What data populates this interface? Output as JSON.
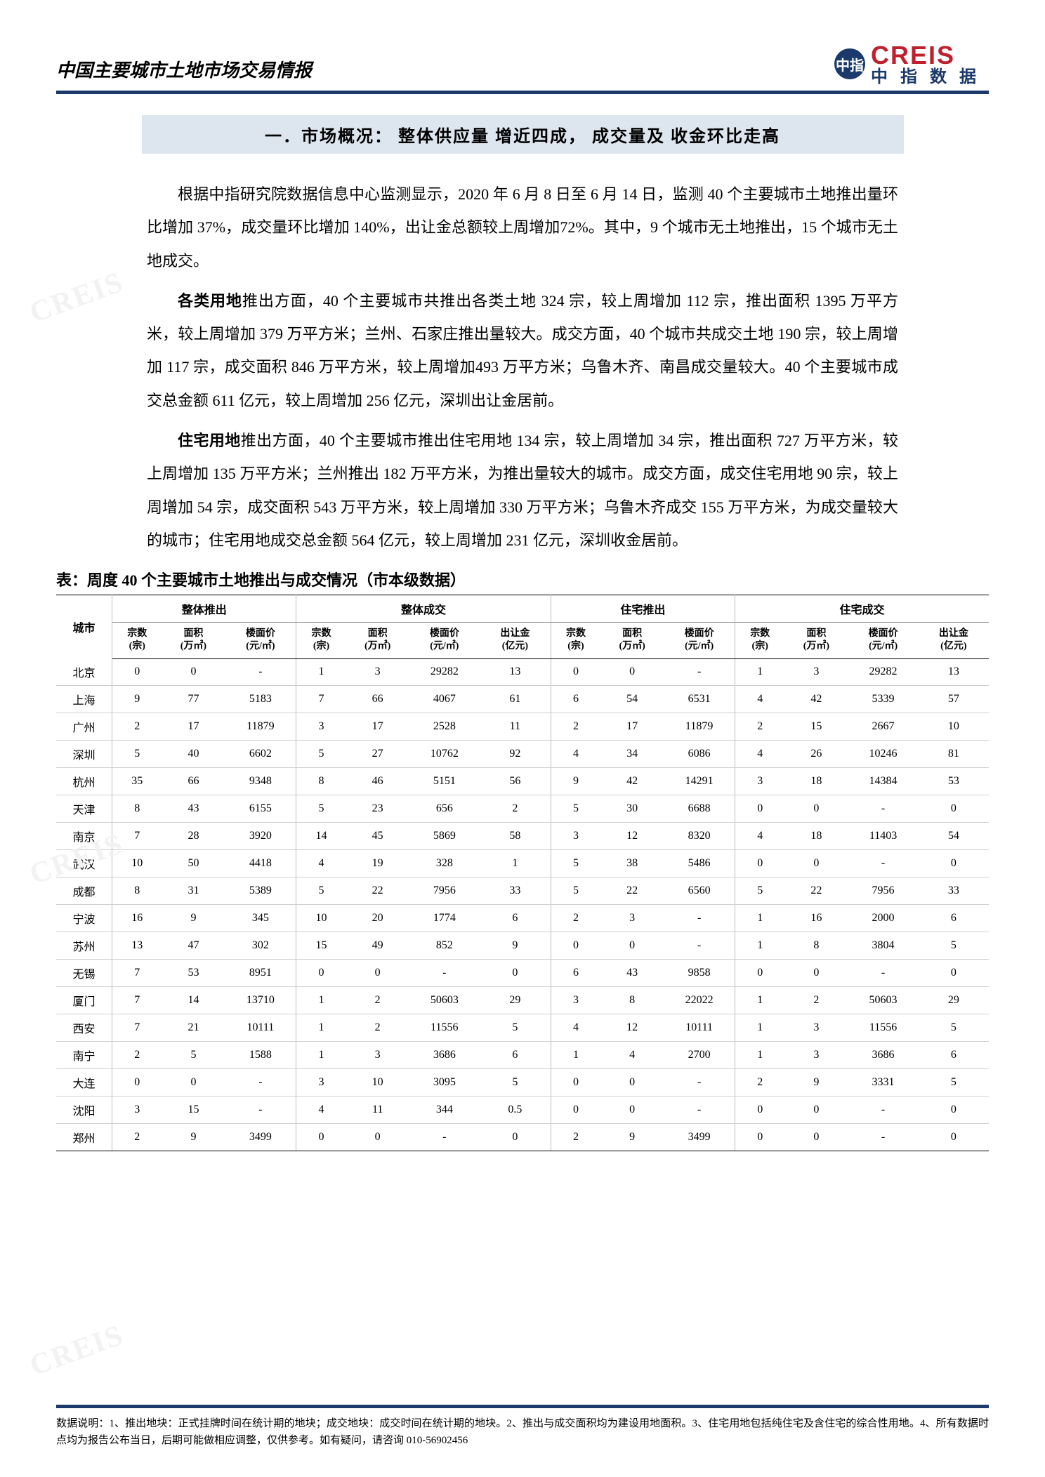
{
  "header": {
    "report_title": "中国主要城市土地市场交易情报",
    "logo_badge": "中指",
    "logo_en": "CREIS",
    "logo_cn": "中指数据"
  },
  "section": {
    "title": "一．市场概况： 整体供应量 增近四成， 成交量及 收金环比走高",
    "para1": "根据中指研究院数据信息中心监测显示，2020 年 6 月 8 日至 6 月 14 日，监测 40 个主要城市土地推出量环比增加 37%，成交量环比增加 140%，出让金总额较上周增加72%。其中，9 个城市无土地推出，15 个城市无土地成交。",
    "para2_bold": "各类用地",
    "para2_rest": "推出方面，40 个主要城市共推出各类土地 324 宗，较上周增加 112 宗，推出面积 1395 万平方米，较上周增加 379 万平方米；兰州、石家庄推出量较大。成交方面，40 个城市共成交土地 190 宗，较上周增加 117 宗，成交面积 846 万平方米，较上周增加493 万平方米；乌鲁木齐、南昌成交量较大。40 个主要城市成交总金额 611 亿元，较上周增加 256 亿元，深圳出让金居前。",
    "para3_bold": "住宅用地",
    "para3_rest": "推出方面，40 个主要城市推出住宅用地 134 宗，较上周增加 34 宗，推出面积 727 万平方米，较上周增加 135 万平方米；兰州推出 182 万平方米，为推出量较大的城市。成交方面，成交住宅用地 90 宗，较上周增加 54 宗，成交面积 543 万平方米，较上周增加 330 万平方米；乌鲁木齐成交 155 万平方米，为成交量较大的城市；住宅用地成交总金额 564 亿元，较上周增加 231 亿元，深圳收金居前。"
  },
  "table": {
    "caption": "表：周度 40 个主要城市土地推出与成交情况（市本级数据）",
    "city_header": "城市",
    "groups": [
      "整体推出",
      "整体成交",
      "住宅推出",
      "住宅成交"
    ],
    "sub_headers": {
      "count": "宗数\n(宗)",
      "area": "面积\n(万㎡)",
      "price": "楼面价\n(元/㎡)",
      "money": "出让金\n(亿元)"
    },
    "rows": [
      {
        "city": "北京",
        "a": [
          "0",
          "0",
          "-"
        ],
        "b": [
          "1",
          "3",
          "29282",
          "13"
        ],
        "c": [
          "0",
          "0",
          "-"
        ],
        "d": [
          "1",
          "3",
          "29282",
          "13"
        ]
      },
      {
        "city": "上海",
        "a": [
          "9",
          "77",
          "5183"
        ],
        "b": [
          "7",
          "66",
          "4067",
          "61"
        ],
        "c": [
          "6",
          "54",
          "6531"
        ],
        "d": [
          "4",
          "42",
          "5339",
          "57"
        ]
      },
      {
        "city": "广州",
        "a": [
          "2",
          "17",
          "11879"
        ],
        "b": [
          "3",
          "17",
          "2528",
          "11"
        ],
        "c": [
          "2",
          "17",
          "11879"
        ],
        "d": [
          "2",
          "15",
          "2667",
          "10"
        ]
      },
      {
        "city": "深圳",
        "a": [
          "5",
          "40",
          "6602"
        ],
        "b": [
          "5",
          "27",
          "10762",
          "92"
        ],
        "c": [
          "4",
          "34",
          "6086"
        ],
        "d": [
          "4",
          "26",
          "10246",
          "81"
        ]
      },
      {
        "city": "杭州",
        "a": [
          "35",
          "66",
          "9348"
        ],
        "b": [
          "8",
          "46",
          "5151",
          "56"
        ],
        "c": [
          "9",
          "42",
          "14291"
        ],
        "d": [
          "3",
          "18",
          "14384",
          "53"
        ]
      },
      {
        "city": "天津",
        "a": [
          "8",
          "43",
          "6155"
        ],
        "b": [
          "5",
          "23",
          "656",
          "2"
        ],
        "c": [
          "5",
          "30",
          "6688"
        ],
        "d": [
          "0",
          "0",
          "-",
          "0"
        ]
      },
      {
        "city": "南京",
        "a": [
          "7",
          "28",
          "3920"
        ],
        "b": [
          "14",
          "45",
          "5869",
          "58"
        ],
        "c": [
          "3",
          "12",
          "8320"
        ],
        "d": [
          "4",
          "18",
          "11403",
          "54"
        ]
      },
      {
        "city": "武汉",
        "a": [
          "10",
          "50",
          "4418"
        ],
        "b": [
          "4",
          "19",
          "328",
          "1"
        ],
        "c": [
          "5",
          "38",
          "5486"
        ],
        "d": [
          "0",
          "0",
          "-",
          "0"
        ]
      },
      {
        "city": "成都",
        "a": [
          "8",
          "31",
          "5389"
        ],
        "b": [
          "5",
          "22",
          "7956",
          "33"
        ],
        "c": [
          "5",
          "22",
          "6560"
        ],
        "d": [
          "5",
          "22",
          "7956",
          "33"
        ]
      },
      {
        "city": "宁波",
        "a": [
          "16",
          "9",
          "345"
        ],
        "b": [
          "10",
          "20",
          "1774",
          "6"
        ],
        "c": [
          "2",
          "3",
          "-"
        ],
        "d": [
          "1",
          "16",
          "2000",
          "6"
        ]
      },
      {
        "city": "苏州",
        "a": [
          "13",
          "47",
          "302"
        ],
        "b": [
          "15",
          "49",
          "852",
          "9"
        ],
        "c": [
          "0",
          "0",
          "-"
        ],
        "d": [
          "1",
          "8",
          "3804",
          "5"
        ]
      },
      {
        "city": "无锡",
        "a": [
          "7",
          "53",
          "8951"
        ],
        "b": [
          "0",
          "0",
          "-",
          "0"
        ],
        "c": [
          "6",
          "43",
          "9858"
        ],
        "d": [
          "0",
          "0",
          "-",
          "0"
        ]
      },
      {
        "city": "厦门",
        "a": [
          "7",
          "14",
          "13710"
        ],
        "b": [
          "1",
          "2",
          "50603",
          "29"
        ],
        "c": [
          "3",
          "8",
          "22022"
        ],
        "d": [
          "1",
          "2",
          "50603",
          "29"
        ]
      },
      {
        "city": "西安",
        "a": [
          "7",
          "21",
          "10111"
        ],
        "b": [
          "1",
          "2",
          "11556",
          "5"
        ],
        "c": [
          "4",
          "12",
          "10111"
        ],
        "d": [
          "1",
          "3",
          "11556",
          "5"
        ]
      },
      {
        "city": "南宁",
        "a": [
          "2",
          "5",
          "1588"
        ],
        "b": [
          "1",
          "3",
          "3686",
          "6"
        ],
        "c": [
          "1",
          "4",
          "2700"
        ],
        "d": [
          "1",
          "3",
          "3686",
          "6"
        ]
      },
      {
        "city": "大连",
        "a": [
          "0",
          "0",
          "-"
        ],
        "b": [
          "3",
          "10",
          "3095",
          "5"
        ],
        "c": [
          "0",
          "0",
          "-"
        ],
        "d": [
          "2",
          "9",
          "3331",
          "5"
        ]
      },
      {
        "city": "沈阳",
        "a": [
          "3",
          "15",
          "-"
        ],
        "b": [
          "4",
          "11",
          "344",
          "0.5"
        ],
        "c": [
          "0",
          "0",
          "-"
        ],
        "d": [
          "0",
          "0",
          "-",
          "0"
        ]
      },
      {
        "city": "郑州",
        "a": [
          "2",
          "9",
          "3499"
        ],
        "b": [
          "0",
          "0",
          "-",
          "0"
        ],
        "c": [
          "2",
          "9",
          "3499"
        ],
        "d": [
          "0",
          "0",
          "-",
          "0"
        ]
      }
    ]
  },
  "footer": {
    "text": "数据说明：1、推出地块：正式挂牌时间在统计期的地块；成交地块：成交时间在统计期的地块。2、推出与成交面积均为建设用地面积。3、住宅用地包括纯住宅及含住宅的综合性用地。4、所有数据时点均为报告公布当日，后期可能做相应调整，仅供参考。如有疑问，请咨询 010-56902456"
  },
  "colors": {
    "navy": "#1b3a6b",
    "red": "#c0202d",
    "section_bg": "#dde6ef",
    "border_gray": "#cfcfcf"
  }
}
